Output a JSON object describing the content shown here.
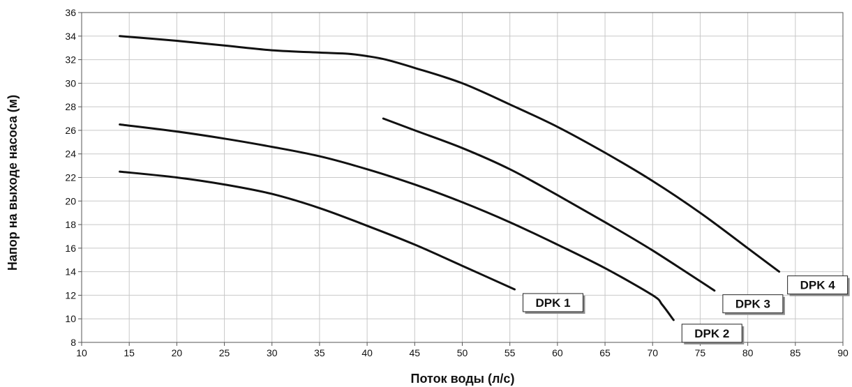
{
  "chart_data": {
    "type": "line",
    "xlabel": "Поток воды (л/с)",
    "ylabel": "Напор на выходе насоса (м)",
    "xlim": [
      10,
      90
    ],
    "ylim": [
      8,
      36
    ],
    "xticks": [
      "10",
      "15",
      "20",
      "25",
      "30",
      "35",
      "40",
      "45",
      "50",
      "55",
      "60",
      "65",
      "70",
      "75",
      "80",
      "85",
      "90"
    ],
    "yticks": [
      "8",
      "10",
      "12",
      "14",
      "16",
      "18",
      "20",
      "22",
      "24",
      "26",
      "28",
      "30",
      "32",
      "34",
      "36"
    ],
    "grid": true,
    "legend": "none",
    "colors": {
      "line": "#111111",
      "grid": "#c8c8c8",
      "axis": "#555555"
    },
    "series": [
      {
        "name": "DPK 1",
        "x": [
          14,
          20,
          25,
          30,
          35,
          40,
          45,
          50,
          55.5
        ],
        "y": [
          22.5,
          22.0,
          21.4,
          20.6,
          19.4,
          17.9,
          16.3,
          14.5,
          12.5
        ]
      },
      {
        "name": "DPK 2",
        "x": [
          14,
          20,
          25,
          30,
          35,
          40,
          45,
          50,
          55,
          60,
          65,
          70,
          71,
          72.2
        ],
        "y": [
          26.5,
          25.9,
          25.3,
          24.6,
          23.8,
          22.7,
          21.4,
          19.9,
          18.2,
          16.3,
          14.3,
          12.0,
          11.2,
          9.9
        ]
      },
      {
        "name": "DPK 3",
        "x": [
          41.7,
          45,
          50,
          55,
          60,
          65,
          70,
          76.5
        ],
        "y": [
          27.0,
          26.0,
          24.5,
          22.7,
          20.5,
          18.2,
          15.8,
          12.4
        ]
      },
      {
        "name": "DPK 4",
        "x": [
          14,
          20,
          25,
          30,
          35,
          38,
          40,
          42,
          45,
          50,
          55,
          60,
          65,
          70,
          75,
          80,
          83.3
        ],
        "y": [
          34.0,
          33.6,
          33.2,
          32.8,
          32.6,
          32.5,
          32.3,
          32.0,
          31.3,
          30.0,
          28.2,
          26.3,
          24.1,
          21.7,
          19.0,
          16.0,
          14.0
        ]
      }
    ]
  }
}
